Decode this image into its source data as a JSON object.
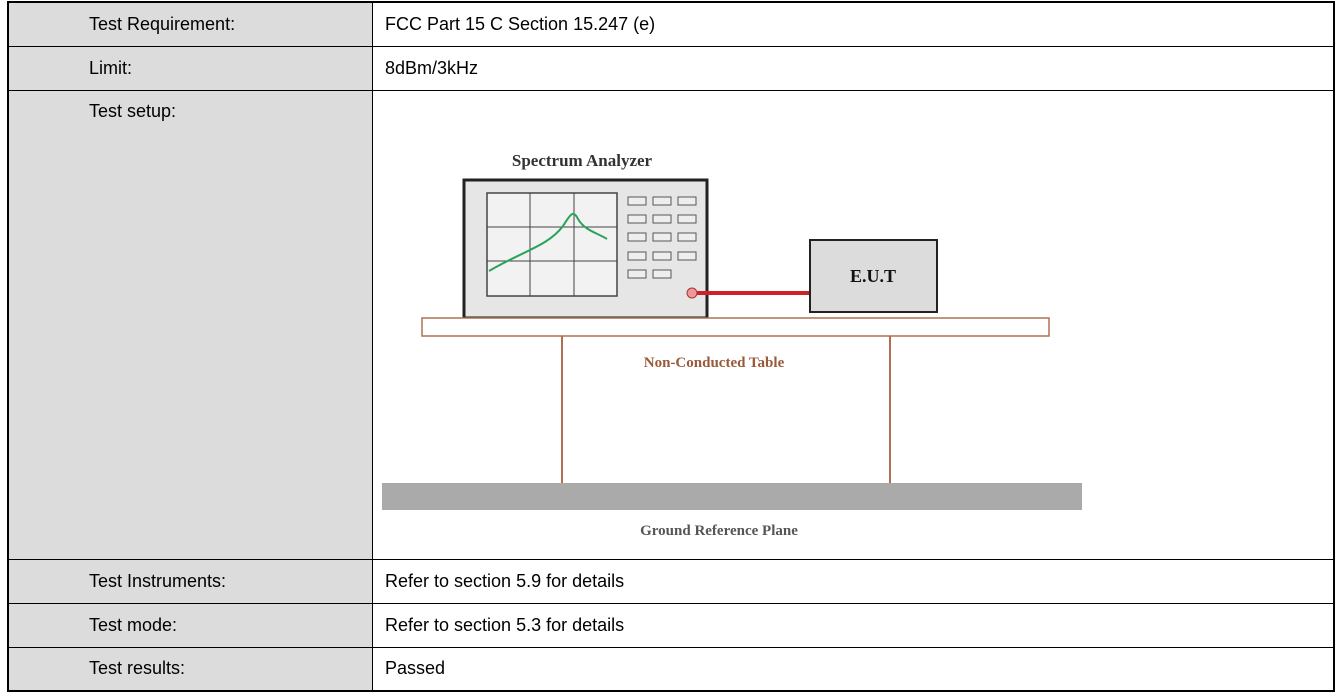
{
  "table": {
    "rows": [
      {
        "label": "Test Requirement:",
        "value": "FCC Part 15 C Section 15.247 (e)"
      },
      {
        "label": "Limit:",
        "value": "8dBm/3kHz"
      },
      {
        "label": "Test setup:",
        "diagram": {
          "analyzer": "Spectrum Analyzer",
          "eut": "E.U.T",
          "table": "Non-Conducted Table",
          "ground": "Ground Reference Plane"
        }
      },
      {
        "label": "Test Instruments:",
        "value": "Refer to section 5.9 for details"
      },
      {
        "label": "Test mode:",
        "value": "Refer to section 5.3 for details"
      },
      {
        "label": "Test results:",
        "value": "Passed"
      }
    ]
  }
}
